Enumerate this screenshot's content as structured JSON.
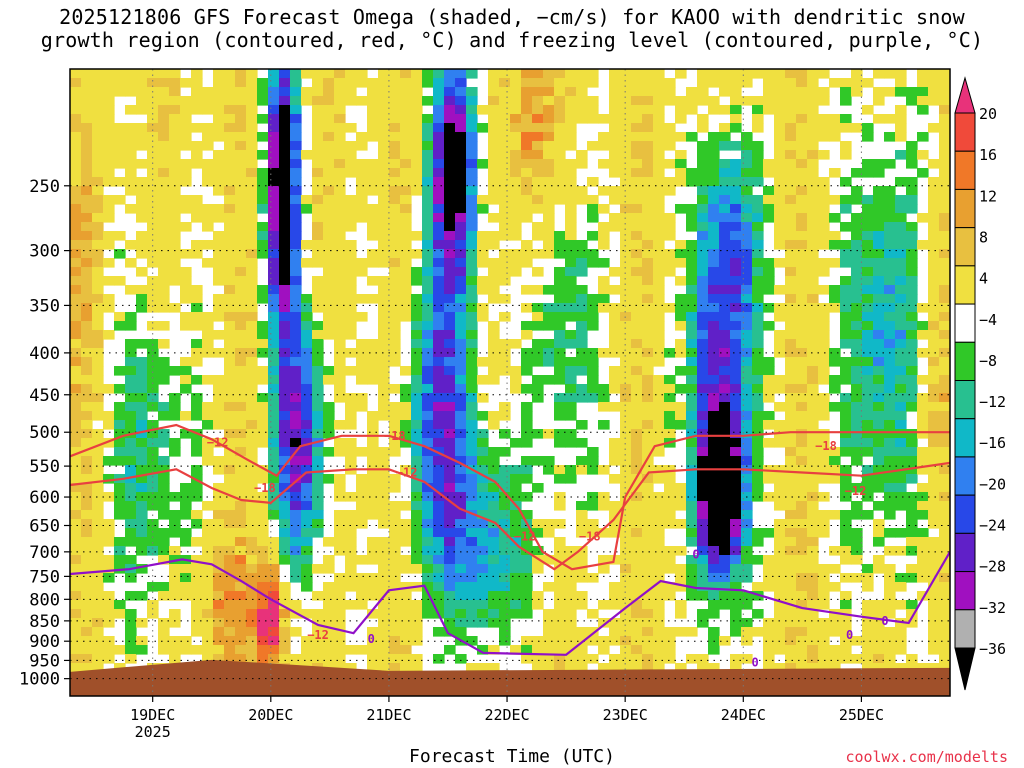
{
  "page": {
    "title_line1": "2025121806 GFS Forecast Omega (shaded, −cm/s) for KAOO with dendritic snow",
    "title_line2": "growth region (contoured, red, °C) and freezing level (contoured, purple, °C)",
    "xlabel": "Forecast Time (UTC)",
    "credit": "coolwx.com/modelts"
  },
  "chart_data": {
    "type": "heatmap",
    "run": "2025121806",
    "model": "GFS",
    "station": "KAOO",
    "x_axis": {
      "label": "Forecast Time (UTC)",
      "range_days": [
        18.3,
        25.75
      ],
      "ticks": [
        {
          "day": 19,
          "label": "19DEC",
          "sublabel": "2025"
        },
        {
          "day": 20,
          "label": "20DEC",
          "sublabel": ""
        },
        {
          "day": 21,
          "label": "21DEC",
          "sublabel": ""
        },
        {
          "day": 22,
          "label": "22DEC",
          "sublabel": ""
        },
        {
          "day": 23,
          "label": "23DEC",
          "sublabel": ""
        },
        {
          "day": 24,
          "label": "24DEC",
          "sublabel": ""
        },
        {
          "day": 25,
          "label": "25DEC",
          "sublabel": ""
        }
      ]
    },
    "y_axis": {
      "label": "",
      "unit": "hPa",
      "scale": "log-pressure",
      "range": [
        1050,
        180
      ],
      "ticks": [
        250,
        300,
        350,
        400,
        450,
        500,
        550,
        600,
        650,
        700,
        750,
        800,
        850,
        900,
        950,
        1000
      ]
    },
    "grid": true,
    "colorbar": {
      "position": "right",
      "unit": "-cm/s",
      "labels": [
        "20",
        "16",
        "12",
        "8",
        "4",
        "−4",
        "−8",
        "−12",
        "−16",
        "−20",
        "−24",
        "−28",
        "−32",
        "−36"
      ],
      "colors": [
        "#e8327a",
        "#f04a3a",
        "#f07828",
        "#e8a030",
        "#e8c040",
        "#f0e040",
        "#ffffff",
        "#30c828",
        "#28c090",
        "#10b8c8",
        "#3080f0",
        "#2848e8",
        "#6020c8",
        "#a010c0",
        "#b0b0b0",
        "#000000"
      ]
    },
    "omega_features": [
      {
        "name": "strong ascent column",
        "center_day": 20.1,
        "pressure_range": [
          160,
          400
        ],
        "min_value": -36
      },
      {
        "name": "upper ascent column",
        "center_day": 21.55,
        "pressure_range": [
          180,
          330
        ],
        "min_value": -36
      },
      {
        "name": "mid-level ascent core",
        "center_day": 23.8,
        "pressure_range": [
          510,
          720
        ],
        "min_value": -36
      },
      {
        "name": "lower descent maximum",
        "center_day": 20.05,
        "pressure_range": [
          700,
          950
        ],
        "max_value": 20
      }
    ],
    "dendritic_contours": {
      "color": "#e84040",
      "labels": [
        "−12",
        "−18"
      ],
      "minus12_points": [
        [
          18.3,
          535
        ],
        [
          18.75,
          505
        ],
        [
          19.2,
          490
        ],
        [
          19.5,
          510
        ],
        [
          19.8,
          540
        ],
        [
          20.05,
          565
        ],
        [
          20.25,
          520
        ],
        [
          20.6,
          505
        ],
        [
          21.0,
          505
        ],
        [
          21.3,
          520
        ],
        [
          21.6,
          545
        ],
        [
          21.9,
          575
        ],
        [
          22.1,
          620
        ],
        [
          22.3,
          700
        ],
        [
          22.55,
          735
        ],
        [
          22.9,
          720
        ],
        [
          23.0,
          600
        ],
        [
          23.25,
          520
        ],
        [
          23.6,
          505
        ],
        [
          24.0,
          505
        ],
        [
          24.4,
          500
        ],
        [
          25.0,
          500
        ],
        [
          25.75,
          500
        ]
      ],
      "minus18_points": [
        [
          18.3,
          580
        ],
        [
          18.75,
          570
        ],
        [
          19.2,
          555
        ],
        [
          19.5,
          585
        ],
        [
          19.75,
          605
        ],
        [
          20.0,
          610
        ],
        [
          20.3,
          560
        ],
        [
          20.7,
          555
        ],
        [
          21.0,
          555
        ],
        [
          21.3,
          575
        ],
        [
          21.6,
          620
        ],
        [
          21.9,
          645
        ],
        [
          22.1,
          690
        ],
        [
          22.4,
          735
        ],
        [
          22.6,
          700
        ],
        [
          22.9,
          640
        ],
        [
          23.2,
          560
        ],
        [
          23.6,
          555
        ],
        [
          24.0,
          555
        ],
        [
          24.5,
          560
        ],
        [
          25.0,
          565
        ],
        [
          25.75,
          545
        ]
      ]
    },
    "freezing_level": {
      "color": "#9010c8",
      "label": "0",
      "points": [
        [
          18.3,
          745
        ],
        [
          18.8,
          735
        ],
        [
          19.25,
          715
        ],
        [
          19.5,
          725
        ],
        [
          19.75,
          760
        ],
        [
          20.0,
          800
        ],
        [
          20.4,
          860
        ],
        [
          20.7,
          880
        ],
        [
          21.0,
          780
        ],
        [
          21.3,
          770
        ],
        [
          21.5,
          880
        ],
        [
          21.8,
          930
        ],
        [
          22.5,
          935
        ],
        [
          23.0,
          820
        ],
        [
          23.3,
          760
        ],
        [
          23.6,
          775
        ],
        [
          24.0,
          780
        ],
        [
          24.5,
          820
        ],
        [
          25.0,
          840
        ],
        [
          25.4,
          855
        ],
        [
          25.75,
          700
        ]
      ]
    },
    "terrain_surface_hpa": 970,
    "terrain_color": "#a0502a"
  }
}
